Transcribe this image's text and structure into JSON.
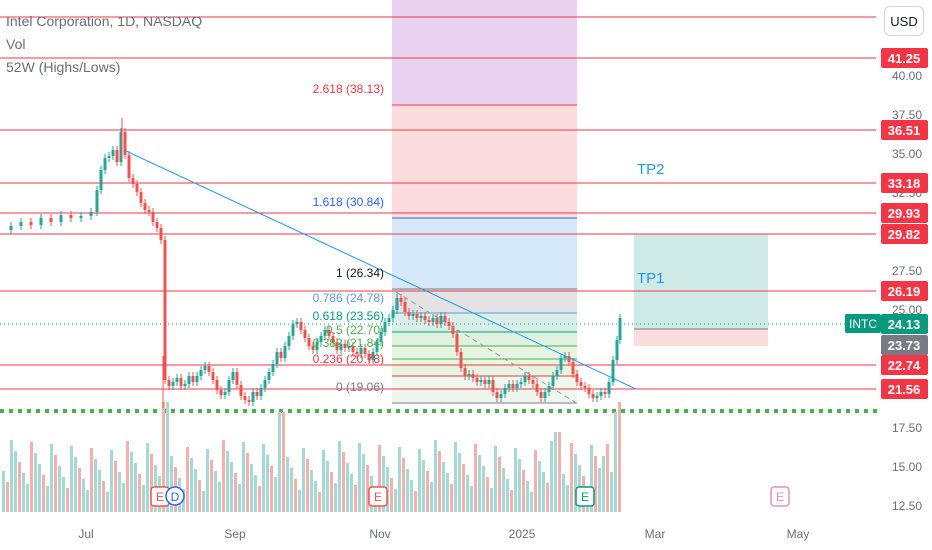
{
  "legend": {
    "title": "Intel Corporation, 1D, NASDAQ",
    "vol": "Vol",
    "hl": "52W (Highs/Lows)"
  },
  "currency": "USD",
  "price_scale": {
    "ticks": [
      "40.00",
      "37.50",
      "35.00",
      "32.50",
      "27.50",
      "25.00",
      "17.50",
      "15.00",
      "12.50"
    ]
  },
  "time_scale": {
    "ticks": [
      "Jul",
      "Sep",
      "Nov",
      "2025",
      "Mar",
      "May"
    ]
  },
  "levels": [
    {
      "value": "41.25",
      "color": "#f23645"
    },
    {
      "value": "36.51",
      "color": "#f23645"
    },
    {
      "value": "33.18",
      "color": "#f23645"
    },
    {
      "value": "29.93",
      "color": "#f23645"
    },
    {
      "value": "29.82",
      "color": "#f23645"
    },
    {
      "value": "26.19",
      "color": "#f23645"
    },
    {
      "value": "22.74",
      "color": "#f23645"
    },
    {
      "value": "21.56",
      "color": "#f23645"
    }
  ],
  "last_price": {
    "symbol": "INTC",
    "value": "24.13",
    "color": "#089981"
  },
  "stop_price": {
    "value": "23.73",
    "color": "#787b86"
  },
  "fib": [
    {
      "label": "2.618 (38.13)",
      "color": "#f23645"
    },
    {
      "label": "1.618 (30.84)",
      "color": "#2962ff"
    },
    {
      "label": "1 (26.34)",
      "color": "#787b86"
    },
    {
      "label": "0.786 (24.78)",
      "color": "#5a9be6"
    },
    {
      "label": "0.618 (23.56)",
      "color": "#089981"
    },
    {
      "label": "0.5 (22.70)",
      "color": "#4caf50"
    },
    {
      "label": "0.382 (21.84)",
      "color": "#4caf50"
    },
    {
      "label": "0.236 (20.78)",
      "color": "#f23645"
    },
    {
      "label": "0 (19.06)",
      "color": "#787b86"
    }
  ],
  "targets": {
    "tp1": "TP1",
    "tp2": "TP2"
  },
  "events": {
    "earnings": "E",
    "dividend": "D"
  },
  "colors": {
    "up": "#26a69a",
    "down": "#ef5350",
    "level": "#f23645",
    "trend": "#2196f3",
    "support": "#4caf50"
  }
}
